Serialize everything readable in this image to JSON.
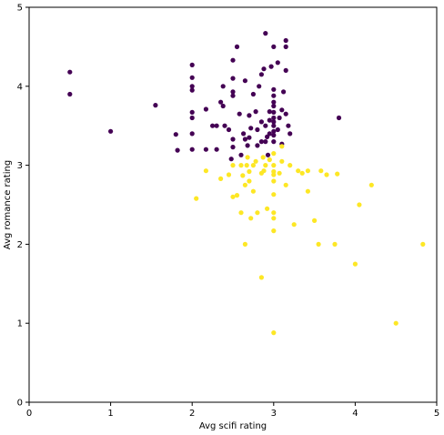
{
  "chart_data": {
    "type": "scatter",
    "title": "",
    "xlabel": "Avg scifi rating",
    "ylabel": "Avg romance rating",
    "xlim": [
      0,
      5
    ],
    "ylim": [
      0,
      5
    ],
    "xticks": [
      0,
      1,
      2,
      3,
      4,
      5
    ],
    "yticks": [
      0,
      1,
      2,
      3,
      4,
      5
    ],
    "grid": false,
    "legend": "none",
    "series": [
      {
        "color": "#440154",
        "points": [
          [
            0.5,
            4.18
          ],
          [
            0.5,
            3.9
          ],
          [
            1.0,
            3.43
          ],
          [
            1.55,
            3.76
          ],
          [
            1.8,
            3.39
          ],
          [
            1.82,
            3.19
          ],
          [
            2.0,
            4.27
          ],
          [
            2.0,
            4.11
          ],
          [
            2.0,
            4.0
          ],
          [
            2.0,
            3.95
          ],
          [
            2.0,
            3.67
          ],
          [
            2.0,
            3.6
          ],
          [
            2.0,
            3.4
          ],
          [
            2.0,
            3.2
          ],
          [
            2.17,
            3.71
          ],
          [
            2.17,
            3.2
          ],
          [
            2.25,
            3.5
          ],
          [
            2.3,
            3.5
          ],
          [
            2.3,
            3.2
          ],
          [
            2.35,
            3.8
          ],
          [
            2.38,
            4.0
          ],
          [
            2.38,
            3.75
          ],
          [
            2.4,
            3.5
          ],
          [
            2.45,
            3.45
          ],
          [
            2.48,
            3.08
          ],
          [
            2.5,
            4.33
          ],
          [
            2.5,
            4.1
          ],
          [
            2.5,
            3.93
          ],
          [
            2.5,
            3.88
          ],
          [
            2.5,
            3.33
          ],
          [
            2.5,
            3.23
          ],
          [
            2.55,
            4.5
          ],
          [
            2.58,
            3.65
          ],
          [
            2.63,
            3.4
          ],
          [
            2.65,
            4.07
          ],
          [
            2.65,
            3.33
          ],
          [
            2.68,
            3.25
          ],
          [
            2.7,
            3.63
          ],
          [
            2.72,
            3.47
          ],
          [
            2.75,
            3.9
          ],
          [
            2.78,
            3.68
          ],
          [
            2.8,
            3.45
          ],
          [
            2.82,
            4.0
          ],
          [
            2.85,
            4.15
          ],
          [
            2.85,
            3.55
          ],
          [
            2.88,
            4.22
          ],
          [
            2.9,
            4.67
          ],
          [
            2.9,
            3.5
          ],
          [
            2.9,
            3.3
          ],
          [
            2.92,
            3.36
          ],
          [
            2.95,
            3.68
          ],
          [
            2.95,
            3.4
          ],
          [
            2.97,
            4.25
          ],
          [
            3.0,
            4.5
          ],
          [
            3.0,
            3.96
          ],
          [
            3.0,
            3.88
          ],
          [
            3.0,
            3.8
          ],
          [
            3.0,
            3.75
          ],
          [
            3.0,
            3.67
          ],
          [
            3.0,
            3.6
          ],
          [
            3.0,
            3.55
          ],
          [
            3.0,
            3.5
          ],
          [
            3.0,
            3.43
          ],
          [
            3.0,
            3.38
          ],
          [
            3.0,
            3.3
          ],
          [
            3.05,
            4.3
          ],
          [
            3.07,
            3.6
          ],
          [
            3.1,
            3.7
          ],
          [
            3.12,
            3.93
          ],
          [
            3.15,
            4.58
          ],
          [
            3.15,
            4.5
          ],
          [
            3.15,
            4.2
          ],
          [
            3.15,
            3.65
          ],
          [
            3.18,
            3.5
          ],
          [
            3.2,
            3.4
          ],
          [
            3.8,
            3.6
          ],
          [
            3.1,
            3.27
          ],
          [
            2.6,
            3.13
          ],
          [
            2.7,
            3.35
          ],
          [
            2.93,
            3.13
          ],
          [
            2.85,
            3.3
          ],
          [
            2.95,
            3.57
          ],
          [
            3.05,
            3.45
          ],
          [
            2.8,
            3.25
          ]
        ]
      },
      {
        "color": "#fde725",
        "points": [
          [
            2.05,
            2.58
          ],
          [
            2.17,
            2.93
          ],
          [
            2.35,
            2.83
          ],
          [
            2.45,
            2.88
          ],
          [
            2.5,
            3.0
          ],
          [
            2.5,
            2.6
          ],
          [
            2.55,
            2.62
          ],
          [
            2.6,
            3.0
          ],
          [
            2.6,
            2.4
          ],
          [
            2.62,
            2.87
          ],
          [
            2.65,
            2.75
          ],
          [
            2.67,
            3.0
          ],
          [
            2.68,
            3.1
          ],
          [
            2.7,
            2.8
          ],
          [
            2.72,
            2.33
          ],
          [
            2.75,
            2.67
          ],
          [
            2.75,
            3.0
          ],
          [
            2.78,
            3.05
          ],
          [
            2.8,
            2.4
          ],
          [
            2.85,
            2.9
          ],
          [
            2.87,
            3.1
          ],
          [
            2.9,
            3.0
          ],
          [
            2.92,
            2.45
          ],
          [
            2.95,
            3.07
          ],
          [
            3.0,
            3.15
          ],
          [
            3.0,
            3.0
          ],
          [
            3.0,
            2.92
          ],
          [
            3.0,
            2.88
          ],
          [
            3.0,
            2.8
          ],
          [
            3.0,
            2.63
          ],
          [
            3.0,
            2.4
          ],
          [
            3.0,
            2.33
          ],
          [
            3.0,
            2.17
          ],
          [
            3.07,
            2.9
          ],
          [
            3.1,
            3.05
          ],
          [
            3.1,
            3.24
          ],
          [
            3.15,
            2.75
          ],
          [
            3.2,
            3.0
          ],
          [
            3.25,
            2.25
          ],
          [
            3.3,
            2.93
          ],
          [
            3.35,
            2.9
          ],
          [
            3.42,
            2.67
          ],
          [
            3.42,
            2.93
          ],
          [
            3.5,
            2.3
          ],
          [
            3.55,
            2.0
          ],
          [
            3.58,
            2.93
          ],
          [
            3.65,
            2.88
          ],
          [
            3.75,
            2.0
          ],
          [
            3.78,
            2.89
          ],
          [
            4.0,
            1.75
          ],
          [
            4.05,
            2.5
          ],
          [
            4.2,
            2.75
          ],
          [
            4.5,
            1.0
          ],
          [
            4.83,
            2.0
          ],
          [
            2.65,
            2.0
          ],
          [
            2.85,
            1.58
          ],
          [
            3.0,
            0.88
          ],
          [
            2.7,
            2.92
          ],
          [
            2.88,
            2.93
          ]
        ]
      }
    ]
  }
}
